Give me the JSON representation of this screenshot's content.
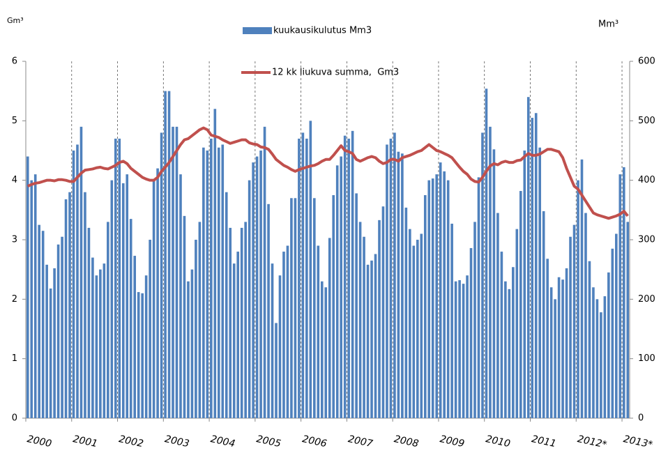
{
  "chart_data": {
    "type": "combo",
    "y_label": "Gm³",
    "y2_label": "Mm³",
    "ylim": [
      0,
      6
    ],
    "yticks": [
      0,
      1,
      2,
      3,
      4,
      5,
      6
    ],
    "y2lim": [
      0,
      600
    ],
    "y2ticks": [
      0,
      100,
      200,
      300,
      400,
      500,
      600
    ],
    "categories": [
      "2000",
      null,
      null,
      null,
      null,
      null,
      null,
      null,
      null,
      null,
      null,
      null,
      "2001",
      null,
      null,
      null,
      null,
      null,
      null,
      null,
      null,
      null,
      null,
      null,
      "2002",
      null,
      null,
      null,
      null,
      null,
      null,
      null,
      null,
      null,
      null,
      null,
      "2003",
      null,
      null,
      null,
      null,
      null,
      null,
      null,
      null,
      null,
      null,
      null,
      "2004",
      null,
      null,
      null,
      null,
      null,
      null,
      null,
      null,
      null,
      null,
      null,
      "2005",
      null,
      null,
      null,
      null,
      null,
      null,
      null,
      null,
      null,
      null,
      null,
      "2006",
      null,
      null,
      null,
      null,
      null,
      null,
      null,
      null,
      null,
      null,
      null,
      "2007",
      null,
      null,
      null,
      null,
      null,
      null,
      null,
      null,
      null,
      null,
      null,
      "2008",
      null,
      null,
      null,
      null,
      null,
      null,
      null,
      null,
      null,
      null,
      null,
      "2009",
      null,
      null,
      null,
      null,
      null,
      null,
      null,
      null,
      null,
      null,
      null,
      "2010",
      null,
      null,
      null,
      null,
      null,
      null,
      null,
      null,
      null,
      null,
      null,
      "2011",
      null,
      null,
      null,
      null,
      null,
      null,
      null,
      null,
      null,
      null,
      null,
      "2012*",
      null,
      null,
      null,
      null,
      null,
      null,
      null,
      null,
      null,
      null,
      null,
      "2013*",
      null
    ],
    "series": [
      {
        "name": "kuukausikulutus Mm3",
        "type": "bar",
        "axis": "y2",
        "color": "#4f81bd",
        "values": [
          440,
          400,
          410,
          325,
          315,
          258,
          218,
          252,
          292,
          305,
          368,
          380,
          450,
          460,
          490,
          380,
          320,
          270,
          240,
          250,
          260,
          330,
          400,
          470,
          470,
          395,
          410,
          335,
          273,
          212,
          210,
          240,
          300,
          400,
          420,
          480,
          550,
          550,
          490,
          490,
          410,
          340,
          230,
          250,
          300,
          330,
          455,
          450,
          470,
          520,
          455,
          460,
          380,
          320,
          260,
          280,
          320,
          330,
          400,
          430,
          440,
          450,
          490,
          360,
          260,
          160,
          240,
          280,
          290,
          370,
          370,
          470,
          480,
          470,
          500,
          370,
          290,
          230,
          220,
          303,
          375,
          425,
          440,
          475,
          470,
          483,
          378,
          330,
          305,
          258,
          265,
          276,
          333,
          356,
          460,
          470,
          480,
          448,
          445,
          354,
          318,
          290,
          300,
          310,
          375,
          400,
          403,
          410,
          430,
          415,
          400,
          327,
          230,
          232,
          226,
          240,
          286,
          330,
          405,
          480,
          554,
          490,
          452,
          345,
          280,
          230,
          217,
          254,
          318,
          382,
          450,
          540,
          505,
          513,
          455,
          348,
          268,
          220,
          200,
          237,
          233,
          252,
          305,
          325,
          400,
          435,
          345,
          264,
          220,
          200,
          178,
          205,
          245,
          285,
          310,
          410,
          422,
          330
        ]
      },
      {
        "name": "12 kk liukuva summa,  Gm3",
        "type": "line",
        "color": "#c0504d",
        "values": [
          3.9,
          3.93,
          3.95,
          3.96,
          3.98,
          4.0,
          4.0,
          3.99,
          4.01,
          4.01,
          4.0,
          3.98,
          3.98,
          4.05,
          4.12,
          4.17,
          4.18,
          4.19,
          4.21,
          4.22,
          4.2,
          4.19,
          4.22,
          4.25,
          4.3,
          4.32,
          4.28,
          4.2,
          4.15,
          4.1,
          4.05,
          4.02,
          4.0,
          4.0,
          4.05,
          4.15,
          4.22,
          4.3,
          4.4,
          4.5,
          4.6,
          4.68,
          4.7,
          4.75,
          4.8,
          4.85,
          4.88,
          4.85,
          4.76,
          4.74,
          4.72,
          4.68,
          4.65,
          4.62,
          4.64,
          4.66,
          4.68,
          4.68,
          4.63,
          4.61,
          4.6,
          4.56,
          4.55,
          4.52,
          4.44,
          4.35,
          4.3,
          4.25,
          4.22,
          4.18,
          4.15,
          4.18,
          4.2,
          4.22,
          4.24,
          4.25,
          4.28,
          4.32,
          4.35,
          4.35,
          4.42,
          4.5,
          4.58,
          4.5,
          4.48,
          4.45,
          4.35,
          4.32,
          4.35,
          4.38,
          4.4,
          4.38,
          4.32,
          4.28,
          4.3,
          4.35,
          4.35,
          4.32,
          4.38,
          4.4,
          4.42,
          4.45,
          4.48,
          4.5,
          4.55,
          4.6,
          4.55,
          4.5,
          4.48,
          4.45,
          4.42,
          4.38,
          4.3,
          4.22,
          4.15,
          4.1,
          4.02,
          3.98,
          3.97,
          4.05,
          4.15,
          4.24,
          4.28,
          4.26,
          4.3,
          4.32,
          4.3,
          4.3,
          4.33,
          4.34,
          4.4,
          4.45,
          4.42,
          4.42,
          4.44,
          4.48,
          4.52,
          4.52,
          4.5,
          4.48,
          4.38,
          4.2,
          4.05,
          3.9,
          3.85,
          3.75,
          3.65,
          3.55,
          3.45,
          3.42,
          3.4,
          3.38,
          3.36,
          3.38,
          3.4,
          3.43,
          3.48,
          3.4
        ]
      }
    ],
    "grid": "x-dashed"
  }
}
